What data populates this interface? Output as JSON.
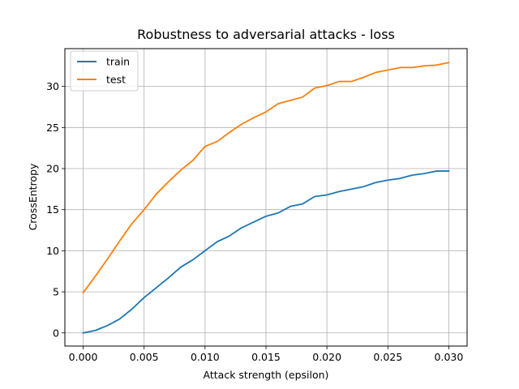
{
  "chart_data": {
    "type": "line",
    "title": "Robustness to adversarial attacks - loss",
    "xlabel": "Attack strength (epsilon)",
    "ylabel": "CrossEntropy",
    "xlim": [
      -0.0015,
      0.0315
    ],
    "ylim": [
      -1.6,
      34.6
    ],
    "grid": true,
    "legend_position": "top-left",
    "x_ticks": [
      {
        "value": 0.0,
        "label": "0.000"
      },
      {
        "value": 0.005,
        "label": "0.005"
      },
      {
        "value": 0.01,
        "label": "0.010"
      },
      {
        "value": 0.015,
        "label": "0.015"
      },
      {
        "value": 0.02,
        "label": "0.020"
      },
      {
        "value": 0.025,
        "label": "0.025"
      },
      {
        "value": 0.03,
        "label": "0.030"
      }
    ],
    "y_ticks": [
      {
        "value": 0,
        "label": "0"
      },
      {
        "value": 5,
        "label": "5"
      },
      {
        "value": 10,
        "label": "10"
      },
      {
        "value": 15,
        "label": "15"
      },
      {
        "value": 20,
        "label": "20"
      },
      {
        "value": 25,
        "label": "25"
      },
      {
        "value": 30,
        "label": "30"
      }
    ],
    "x": [
      0.0,
      0.001,
      0.002,
      0.003,
      0.004,
      0.005,
      0.006,
      0.007,
      0.008,
      0.009,
      0.01,
      0.011,
      0.012,
      0.013,
      0.014,
      0.015,
      0.016,
      0.017,
      0.018,
      0.019,
      0.02,
      0.021,
      0.022,
      0.023,
      0.024,
      0.025,
      0.026,
      0.027,
      0.028,
      0.029,
      0.03
    ],
    "series": [
      {
        "name": "train",
        "color": "#1f77b4",
        "values": [
          0.0,
          0.3,
          0.9,
          1.7,
          2.9,
          4.3,
          5.5,
          6.7,
          8.0,
          8.9,
          10.0,
          11.1,
          11.8,
          12.8,
          13.5,
          14.2,
          14.6,
          15.4,
          15.7,
          16.6,
          16.8,
          17.2,
          17.5,
          17.8,
          18.3,
          18.6,
          18.8,
          19.2,
          19.4,
          19.7,
          19.7
        ]
      },
      {
        "name": "test",
        "color": "#ff7f0e",
        "values": [
          4.9,
          6.9,
          9.0,
          11.2,
          13.3,
          15.0,
          16.9,
          18.4,
          19.8,
          21.0,
          22.7,
          23.3,
          24.4,
          25.4,
          26.2,
          26.9,
          27.9,
          28.3,
          28.7,
          29.8,
          30.1,
          30.6,
          30.6,
          31.1,
          31.7,
          32.0,
          32.3,
          32.3,
          32.5,
          32.6,
          32.9
        ]
      }
    ]
  }
}
